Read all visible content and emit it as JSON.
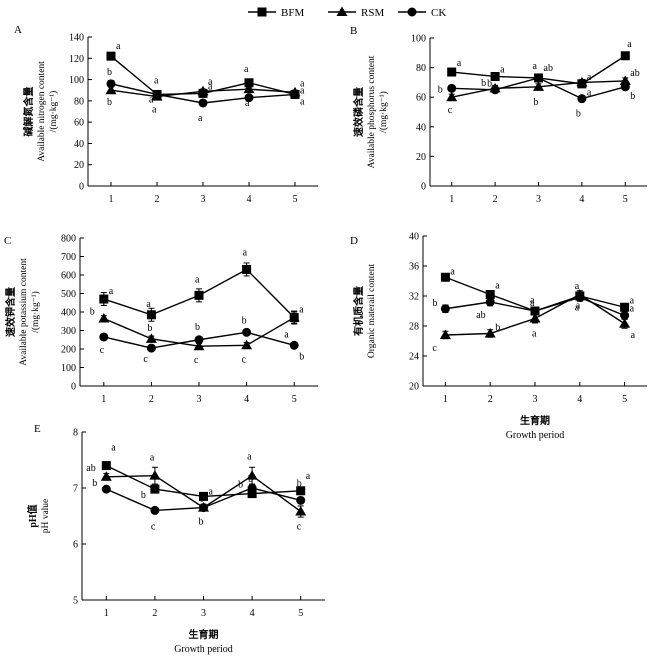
{
  "legend": [
    {
      "name": "BFM",
      "marker": "square"
    },
    {
      "name": "RSM",
      "marker": "triangle"
    },
    {
      "name": "CK",
      "marker": "circle"
    }
  ],
  "chart_data": [
    {
      "panel": "A",
      "type": "line",
      "ylabel_cn": "碱解氮含量",
      "ylabel_en": "Available nitrogen content",
      "yunit": "/(mg·kg⁻¹)",
      "xlabel_cn": "",
      "xlabel_en": "",
      "x": [
        1,
        2,
        3,
        4,
        5
      ],
      "ylim": [
        0,
        140
      ],
      "yticks": [
        0,
        20,
        40,
        60,
        80,
        100,
        120,
        140
      ],
      "series": [
        {
          "name": "BFM",
          "values": [
            122,
            86,
            87,
            97,
            86
          ],
          "err": [
            3,
            2,
            2,
            3,
            2
          ],
          "labels": [
            "a",
            "a",
            "a",
            "a",
            "a"
          ]
        },
        {
          "name": "RSM",
          "values": [
            90,
            84,
            89,
            91,
            88
          ],
          "err": [
            3,
            2,
            2,
            2,
            2
          ],
          "labels": [
            "b",
            "a",
            "a",
            "a",
            "a"
          ]
        },
        {
          "name": "CK",
          "values": [
            96,
            86,
            78,
            83,
            86
          ],
          "err": [
            3,
            2,
            2,
            2,
            2
          ],
          "labels": [
            "b",
            "a",
            "a",
            "a",
            "a"
          ]
        }
      ]
    },
    {
      "panel": "B",
      "type": "line",
      "ylabel_cn": "速效磷含量",
      "ylabel_en": "Available phosphorus content",
      "yunit": "/(mg·kg⁻¹)",
      "xlabel_cn": "",
      "xlabel_en": "",
      "x": [
        1,
        2,
        3,
        4,
        5
      ],
      "ylim": [
        0,
        100
      ],
      "yticks": [
        0,
        20,
        40,
        60,
        80,
        100
      ],
      "series": [
        {
          "name": "BFM",
          "values": [
            77,
            74,
            73,
            69,
            88
          ],
          "err": [
            2,
            2,
            2,
            2,
            2
          ],
          "labels": [
            "a",
            "a",
            "a",
            "a",
            "a"
          ]
        },
        {
          "name": "RSM",
          "values": [
            60,
            66,
            67,
            70,
            71
          ],
          "err": [
            2,
            2,
            2,
            2,
            2
          ],
          "labels": [
            "c",
            "b",
            "b",
            "a",
            "ab"
          ]
        },
        {
          "name": "CK",
          "values": [
            66,
            65,
            73,
            59,
            67
          ],
          "err": [
            2,
            2,
            2,
            2,
            2
          ],
          "labels": [
            "b",
            "b",
            "ab",
            "b",
            "b"
          ]
        }
      ]
    },
    {
      "panel": "C",
      "type": "line",
      "ylabel_cn": "速效钾含量",
      "ylabel_en": "Available potassium content",
      "yunit": "/(mg·kg⁻¹)",
      "xlabel_cn": "",
      "xlabel_en": "",
      "x": [
        1,
        2,
        3,
        4,
        5
      ],
      "ylim": [
        0,
        800
      ],
      "yticks": [
        0,
        100,
        200,
        300,
        400,
        500,
        600,
        700,
        800
      ],
      "series": [
        {
          "name": "BFM",
          "values": [
            470,
            385,
            490,
            630,
            370
          ],
          "err": [
            35,
            35,
            35,
            35,
            35
          ],
          "labels": [
            "a",
            "a",
            "a",
            "a",
            "a"
          ]
        },
        {
          "name": "RSM",
          "values": [
            365,
            255,
            215,
            220,
            370
          ],
          "err": [
            15,
            15,
            15,
            15,
            30
          ],
          "labels": [
            "b",
            "b",
            "c",
            "c",
            "a"
          ]
        },
        {
          "name": "CK",
          "values": [
            265,
            205,
            250,
            290,
            220
          ],
          "err": [
            10,
            10,
            10,
            10,
            10
          ],
          "labels": [
            "c",
            "c",
            "b",
            "b",
            "b"
          ]
        }
      ]
    },
    {
      "panel": "D",
      "type": "line",
      "ylabel_cn": "有机质含量",
      "ylabel_en": "Organic materail content",
      "yunit": "",
      "xlabel_cn": "生育期",
      "xlabel_en": "Growth period",
      "x": [
        1,
        2,
        3,
        4,
        5
      ],
      "ylim": [
        20,
        40
      ],
      "yticks": [
        20,
        24,
        28,
        32,
        36,
        40
      ],
      "series": [
        {
          "name": "BFM",
          "values": [
            34.5,
            32.2,
            30.0,
            32.0,
            30.5
          ],
          "err": [
            0.5,
            0.5,
            0.5,
            0.5,
            0.5
          ],
          "labels": [
            "a",
            "a",
            "a",
            "a",
            "a"
          ]
        },
        {
          "name": "RSM",
          "values": [
            26.8,
            27.0,
            29.0,
            32.2,
            28.3
          ],
          "err": [
            0.5,
            0.5,
            0.6,
            0.5,
            0.6
          ],
          "labels": [
            "c",
            "b",
            "a",
            "a",
            "a"
          ]
        },
        {
          "name": "CK",
          "values": [
            30.3,
            31.2,
            30.0,
            31.8,
            29.4
          ],
          "err": [
            0.5,
            0.5,
            0.5,
            0.5,
            0.5
          ],
          "labels": [
            "b",
            "ab",
            "a",
            "a",
            "a"
          ]
        }
      ]
    },
    {
      "panel": "E",
      "type": "line",
      "ylabel_cn": "pH值",
      "ylabel_en": "pH value",
      "yunit": "",
      "xlabel_cn": "生育期",
      "xlabel_en": "Growth period",
      "x": [
        1,
        2,
        3,
        4,
        5
      ],
      "ylim": [
        5,
        8
      ],
      "yticks": [
        5,
        6,
        7,
        8
      ],
      "series": [
        {
          "name": "BFM",
          "values": [
            7.4,
            6.98,
            6.85,
            6.9,
            6.95
          ],
          "err": [
            0.06,
            0.06,
            0.06,
            0.06,
            0.06
          ],
          "labels": [
            "a",
            "b",
            "a",
            "b",
            "a"
          ]
        },
        {
          "name": "RSM",
          "values": [
            7.2,
            7.22,
            6.65,
            7.22,
            6.58
          ],
          "err": [
            0.06,
            0.15,
            0.06,
            0.15,
            0.1
          ],
          "labels": [
            "ab",
            "a",
            "b",
            "a",
            "c"
          ]
        },
        {
          "name": "CK",
          "values": [
            6.98,
            6.6,
            6.65,
            7.0,
            6.78
          ],
          "err": [
            0.05,
            0.05,
            0.05,
            0.05,
            0.05
          ],
          "labels": [
            "b",
            "c",
            "b",
            "b",
            "b"
          ]
        }
      ]
    }
  ]
}
